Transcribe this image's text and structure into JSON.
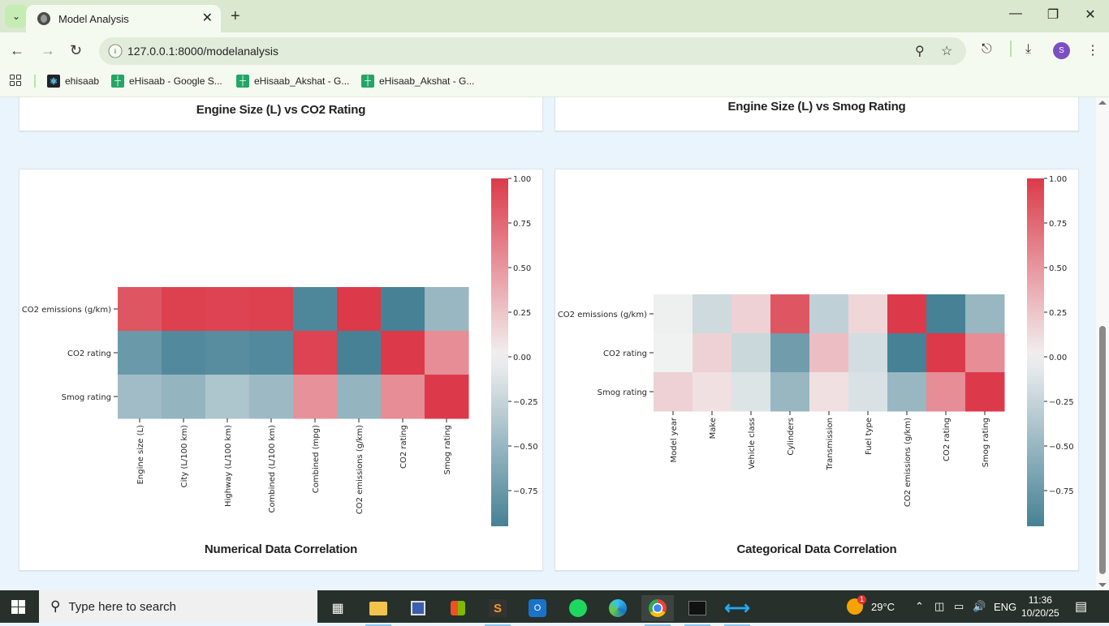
{
  "browser": {
    "tab_title": "Model Analysis",
    "url": "127.0.0.1:8000/modelanalysis",
    "profile_initial": "S",
    "bookmarks": [
      {
        "label": "ehisaab",
        "icon": "react-icon"
      },
      {
        "label": "eHisaab - Google S...",
        "icon": "sheets-icon"
      },
      {
        "label": "eHisaab_Akshat - G...",
        "icon": "sheets-icon"
      },
      {
        "label": "eHisaab_Akshat - G...",
        "icon": "sheets-icon"
      }
    ]
  },
  "page": {
    "cards": {
      "top_left_title": "Engine Size (L) vs CO2 Rating",
      "top_right_title": "Engine Size (L) vs Smog Rating",
      "bottom_left_title": "Numerical Data Correlation",
      "bottom_right_title": "Categorical Data Correlation"
    },
    "colors": {
      "negative": "#3d7b90",
      "neutral": "#f2f2f2",
      "positive": "#dc3a4a",
      "page_bg": "#e9f4fc"
    }
  },
  "chart_data": [
    {
      "type": "heatmap",
      "title": "Numerical Data Correlation",
      "rows": [
        "CO2 emissions (g/km)",
        "CO2 rating",
        "Smog rating"
      ],
      "columns": [
        "Engine size (L)",
        "City (L/100 km)",
        "Highway (L/100 km)",
        "Combined (L/100 km)",
        "Combined (mpg)",
        "CO2 emissions (g/km)",
        "CO2 rating",
        "Smog rating"
      ],
      "values": [
        [
          0.85,
          0.97,
          0.95,
          0.97,
          -0.9,
          1.0,
          -0.95,
          -0.5
        ],
        [
          -0.75,
          -0.88,
          -0.85,
          -0.88,
          0.95,
          -0.95,
          1.0,
          0.55
        ],
        [
          -0.45,
          -0.52,
          -0.38,
          -0.47,
          0.52,
          -0.52,
          0.55,
          1.0
        ]
      ],
      "colorbar": {
        "range": [
          -0.95,
          1.0
        ],
        "ticks": [
          1.0,
          0.75,
          0.5,
          0.25,
          0.0,
          -0.25,
          -0.5,
          -0.75
        ],
        "tick_labels": [
          "1.00",
          "0.75",
          "0.50",
          "0.25",
          "0.00",
          "−0.25",
          "−0.50",
          "−0.75"
        ]
      }
    },
    {
      "type": "heatmap",
      "title": "Categorical Data Correlation",
      "rows": [
        "CO2 emissions (g/km)",
        "CO2 rating",
        "Smog rating"
      ],
      "columns": [
        "Model year",
        "Make",
        "Vehicle class",
        "Cylinders",
        "Transmission",
        "Fuel type",
        "CO2 emissions (g/km)",
        "CO2 rating",
        "Smog rating"
      ],
      "values": [
        [
          -0.02,
          -0.2,
          0.18,
          0.85,
          -0.28,
          0.15,
          1.0,
          -0.95,
          -0.5
        ],
        [
          -0.01,
          0.18,
          -0.22,
          -0.72,
          0.28,
          -0.18,
          -0.95,
          1.0,
          0.55
        ],
        [
          0.18,
          0.1,
          -0.12,
          -0.5,
          0.1,
          -0.14,
          -0.5,
          0.55,
          1.0
        ]
      ],
      "colorbar": {
        "range": [
          -0.95,
          1.0
        ],
        "ticks": [
          1.0,
          0.75,
          0.5,
          0.25,
          0.0,
          -0.25,
          -0.5,
          -0.75
        ],
        "tick_labels": [
          "1.00",
          "0.75",
          "0.50",
          "0.25",
          "0.00",
          "−0.25",
          "−0.50",
          "−0.75"
        ]
      }
    }
  ],
  "taskbar": {
    "search_placeholder": "Type here to search",
    "weather": "29°C",
    "weather_badge": "1",
    "language": "ENG",
    "time": "11:36",
    "date": "10/20/25",
    "notification_count": "1"
  }
}
